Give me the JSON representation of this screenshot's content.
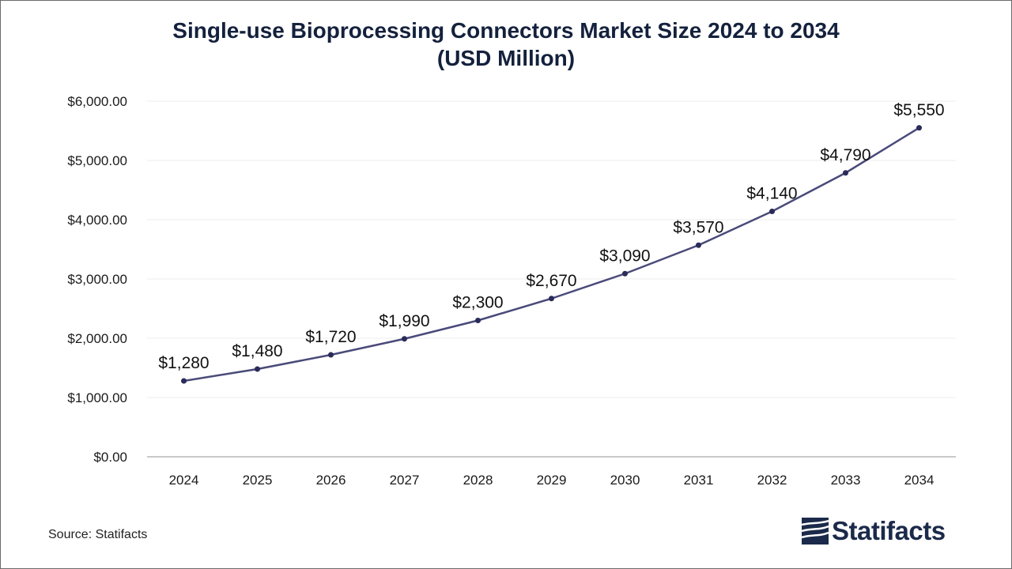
{
  "chart_data": {
    "type": "line",
    "title_line1": "Single-use Bioprocessing Connectors Market Size 2024 to 2034",
    "title_line2": "(USD Million)",
    "categories": [
      "2024",
      "2025",
      "2026",
      "2027",
      "2028",
      "2029",
      "2030",
      "2031",
      "2032",
      "2033",
      "2034"
    ],
    "values": [
      1280,
      1480,
      1720,
      1990,
      2300,
      2670,
      3090,
      3570,
      4140,
      4790,
      5550
    ],
    "data_labels": [
      "$1,280",
      "$1,480",
      "$1,720",
      "$1,990",
      "$2,300",
      "$2,670",
      "$3,090",
      "$3,570",
      "$4,140",
      "$4,790",
      "$5,550"
    ],
    "ylim": [
      0,
      6000
    ],
    "yticks": [
      0,
      1000,
      2000,
      3000,
      4000,
      5000,
      6000
    ],
    "ytick_labels": [
      "$0.00",
      "$1,000.00",
      "$2,000.00",
      "$3,000.00",
      "$4,000.00",
      "$5,000.00",
      "$6,000.00"
    ],
    "xlabel": "",
    "ylabel": "",
    "grid": true,
    "legend": "none",
    "line_color": "#4a4a7a",
    "marker_color": "#2b2b5a"
  },
  "footer": {
    "source": "Source: Statifacts",
    "brand": "Statifacts"
  }
}
